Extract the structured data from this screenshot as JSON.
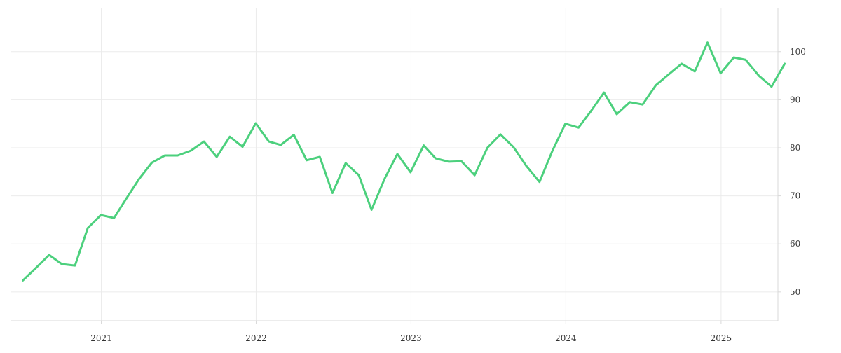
{
  "chart_data": {
    "type": "line",
    "title": "",
    "xlabel": "",
    "ylabel": "",
    "x_axis": {
      "type": "date",
      "range": [
        "2020-06-01",
        "2025-05-15"
      ],
      "ticks": [
        {
          "date": "2021-01-01",
          "label": "2021"
        },
        {
          "date": "2022-01-01",
          "label": "2022"
        },
        {
          "date": "2023-01-01",
          "label": "2023"
        },
        {
          "date": "2024-01-01",
          "label": "2024"
        },
        {
          "date": "2025-01-01",
          "label": "2025"
        }
      ]
    },
    "y_axis": {
      "position": "right",
      "range": [
        44,
        109
      ],
      "ticks": [
        {
          "value": 50,
          "label": "50"
        },
        {
          "value": 60,
          "label": "60"
        },
        {
          "value": 70,
          "label": "70"
        },
        {
          "value": 80,
          "label": "80"
        },
        {
          "value": 90,
          "label": "90"
        },
        {
          "value": 100,
          "label": "100"
        }
      ]
    },
    "grid": true,
    "colors": {
      "line": "#4cd07d",
      "grid": "#ebebeb",
      "axis": "#d9d9d9",
      "text": "#333333"
    },
    "series": [
      {
        "x": [
          "2020-06-30",
          "2020-07-31",
          "2020-08-31",
          "2020-09-30",
          "2020-10-31",
          "2020-11-30",
          "2020-12-31",
          "2021-01-31",
          "2021-02-28",
          "2021-03-31",
          "2021-04-30",
          "2021-05-31",
          "2021-06-30",
          "2021-07-31",
          "2021-08-31",
          "2021-09-30",
          "2021-10-31",
          "2021-11-30",
          "2021-12-31",
          "2022-01-31",
          "2022-02-28",
          "2022-03-31",
          "2022-04-30",
          "2022-05-31",
          "2022-06-30",
          "2022-07-31",
          "2022-08-31",
          "2022-09-30",
          "2022-10-31",
          "2022-11-30",
          "2022-12-31",
          "2023-01-31",
          "2023-02-28",
          "2023-03-31",
          "2023-04-30",
          "2023-05-31",
          "2023-06-30",
          "2023-07-31",
          "2023-08-31",
          "2023-09-30",
          "2023-10-31",
          "2023-11-30",
          "2023-12-31",
          "2024-01-31",
          "2024-02-29",
          "2024-03-31",
          "2024-04-30",
          "2024-05-31",
          "2024-06-30",
          "2024-07-31",
          "2024-08-31",
          "2024-09-30",
          "2024-10-31",
          "2024-11-30",
          "2024-12-31",
          "2025-01-31",
          "2025-02-28",
          "2025-03-31",
          "2025-04-30",
          "2025-05-31"
        ],
        "values": [
          52.4,
          55.0,
          57.7,
          55.8,
          55.5,
          63.3,
          66.0,
          65.4,
          69.3,
          73.5,
          76.9,
          78.4,
          78.4,
          79.4,
          81.3,
          78.1,
          82.3,
          80.2,
          85.1,
          81.3,
          80.6,
          82.7,
          77.4,
          78.1,
          70.6,
          76.8,
          74.3,
          67.1,
          73.6,
          78.7,
          74.9,
          80.5,
          77.8,
          77.1,
          77.2,
          74.3,
          80.0,
          82.8,
          80.1,
          76.2,
          72.9,
          79.3,
          85.0,
          84.2,
          87.6,
          91.5,
          87.0,
          89.5,
          89.0,
          93.0,
          95.3,
          97.5,
          95.9,
          101.9,
          95.5,
          98.8,
          98.3,
          95.0,
          92.7,
          97.5
        ]
      }
    ]
  }
}
